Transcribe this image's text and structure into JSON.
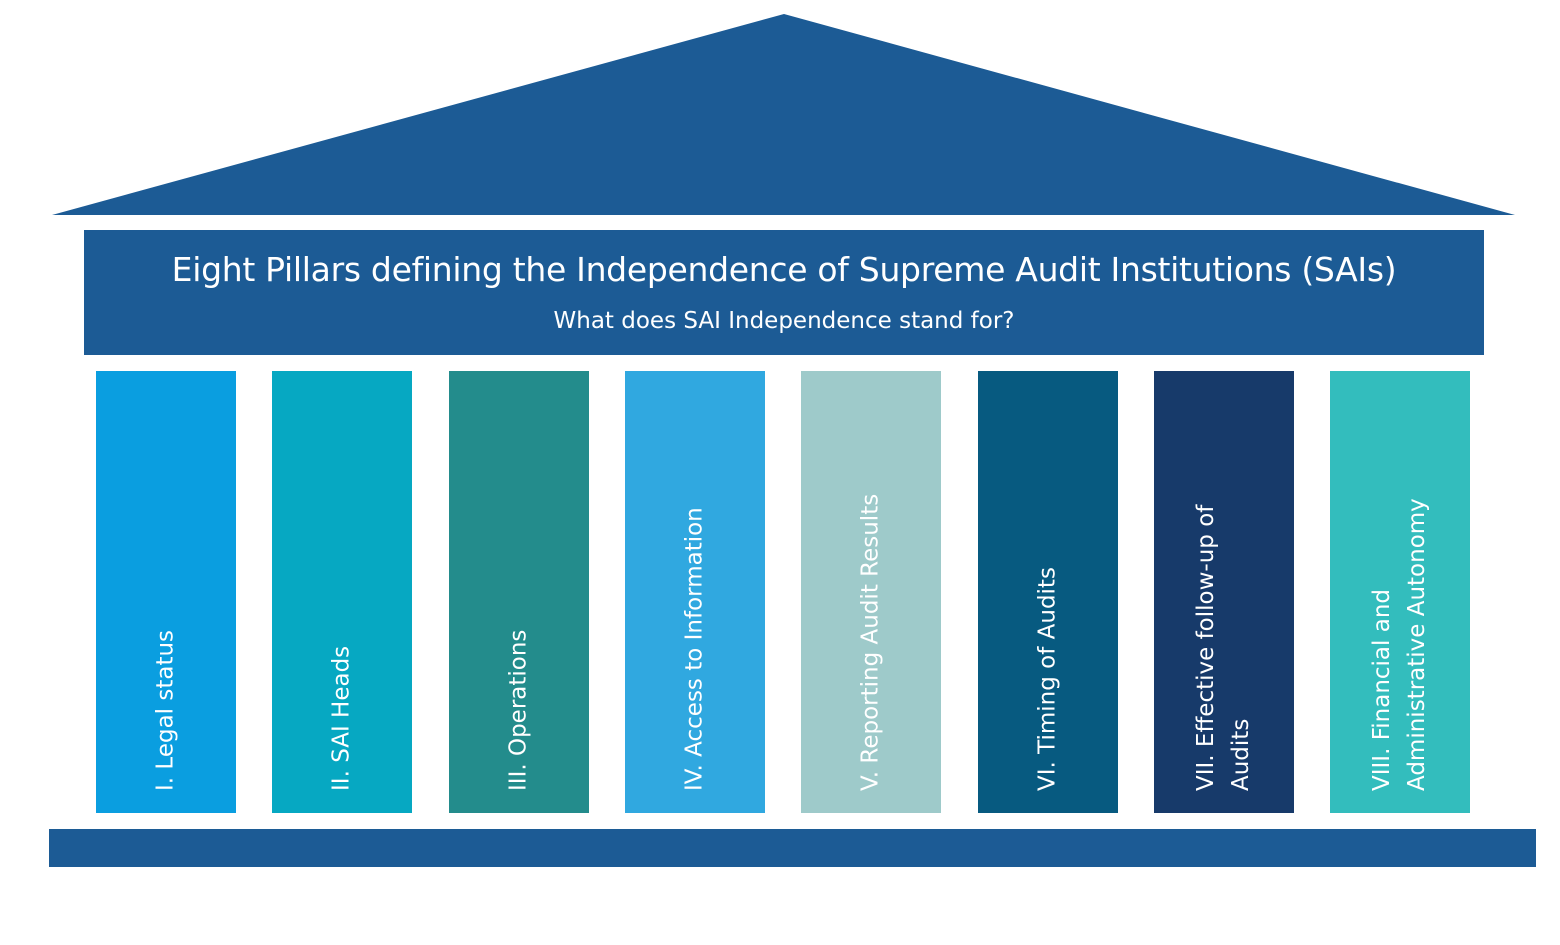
{
  "diagram": {
    "title": "Eight Pillars defining the Independence of Supreme Audit Institutions (SAIs)",
    "subtitle": "What does SAI Independence stand for?",
    "colors": {
      "roof": "#1c5b95",
      "header": "#1c5b95",
      "base": "#1c5b95"
    },
    "pillars": [
      {
        "label": "I. Legal status",
        "color": "#0a9ee0"
      },
      {
        "label": "II. SAI Heads",
        "color": "#06a8c2"
      },
      {
        "label": "III. Operations",
        "color": "#238c8c"
      },
      {
        "label": "IV. Access to Information",
        "color": "#30a8e0"
      },
      {
        "label": "V. Reporting Audit Results",
        "color": "#9ecaca"
      },
      {
        "label": "VI. Timing of Audits",
        "color": "#075a80"
      },
      {
        "label": "VII. Effective follow-up of Audits",
        "color": "#173a6a"
      },
      {
        "label": "VIII. Financial and Administrative Autonomy",
        "color": "#33bdbd"
      }
    ]
  }
}
